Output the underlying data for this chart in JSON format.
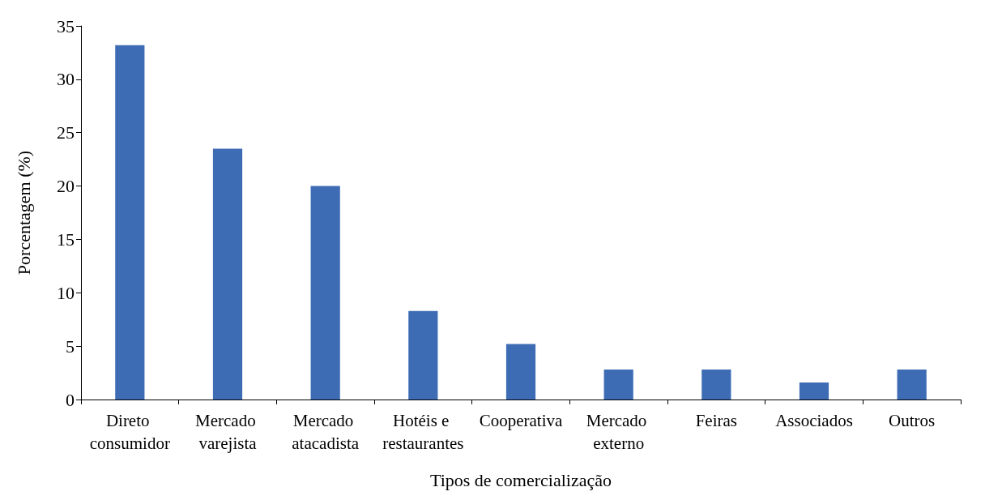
{
  "chart_data": {
    "type": "bar",
    "xlabel": "Tipos de comercialização",
    "ylabel": "Porcentagem (%)",
    "categories": [
      "Direto consumidor",
      "Mercado varejista",
      "Mercado atacadista",
      "Hotéis e restaurantes",
      "Cooperativa",
      "Mercado externo",
      "Feiras",
      "Associados",
      "Outros"
    ],
    "values": [
      33.2,
      23.5,
      20.0,
      8.3,
      5.2,
      2.8,
      2.8,
      1.6,
      2.8
    ],
    "color": "#3d6cb4",
    "ylim": [
      0,
      35
    ],
    "yticks": [
      0,
      5,
      10,
      15,
      20,
      25,
      30,
      35
    ],
    "grid": false
  }
}
